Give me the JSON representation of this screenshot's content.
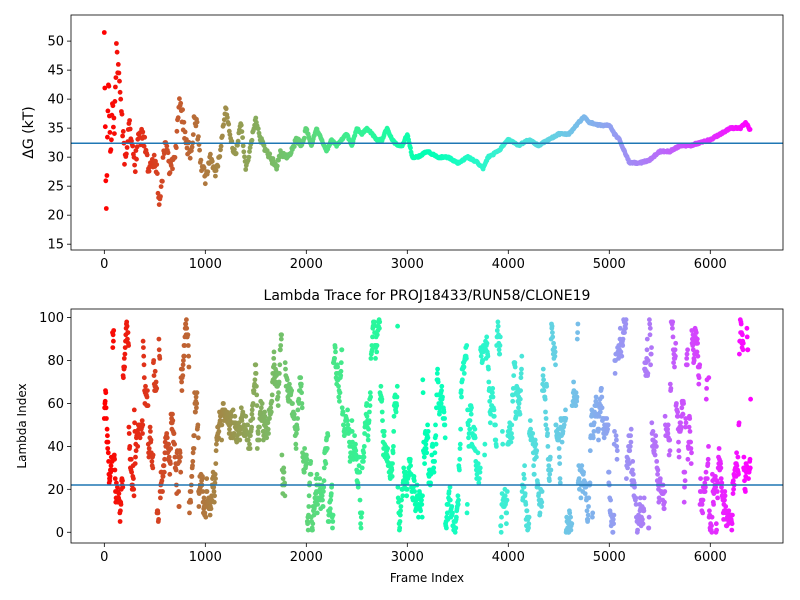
{
  "chart_data": [
    {
      "type": "scatter",
      "title": "",
      "xlabel": "",
      "ylabel": "ΔG (kT)",
      "xlim": [
        -330,
        6720
      ],
      "ylim": [
        14,
        54.5
      ],
      "xticks": [
        0,
        1000,
        2000,
        3000,
        4000,
        5000,
        6000
      ],
      "yticks": [
        15,
        20,
        25,
        30,
        35,
        40,
        45,
        50
      ],
      "hline": 32.4,
      "hline_color": "#1f77b4",
      "colormap": "rainbow",
      "n_frames": 6400,
      "series": [
        {
          "description_points": "running free energy estimate vs frame",
          "x": [
            0,
            20,
            40,
            60,
            80,
            100,
            120,
            150,
            200,
            250,
            300,
            350,
            400,
            450,
            500,
            550,
            600,
            650,
            700,
            750,
            800,
            850,
            900,
            950,
            1000,
            1050,
            1100,
            1150,
            1200,
            1250,
            1300,
            1350,
            1400,
            1450,
            1500,
            1550,
            1600,
            1650,
            1700,
            1750,
            1800,
            1850,
            1900,
            1950,
            2000,
            2050,
            2100,
            2150,
            2200,
            2250,
            2300,
            2350,
            2400,
            2450,
            2500,
            2550,
            2600,
            2650,
            2700,
            2750,
            2800,
            2850,
            2900,
            2950,
            3000,
            3050,
            3100,
            3200,
            3300,
            3400,
            3500,
            3600,
            3700,
            3750,
            3800,
            3900,
            4000,
            4100,
            4200,
            4300,
            4400,
            4500,
            4600,
            4700,
            4750,
            4800,
            4900,
            5000,
            5050,
            5100,
            5200,
            5300,
            5400,
            5500,
            5600,
            5700,
            5800,
            5900,
            6000,
            6100,
            6200,
            6300,
            6350,
            6400
          ],
          "y": [
            50,
            20,
            44,
            30,
            38,
            35,
            48,
            42,
            30,
            36,
            28,
            34,
            33,
            27,
            30,
            22,
            33,
            28,
            30,
            40,
            33,
            31,
            37,
            30,
            26,
            30,
            27,
            31,
            39,
            33,
            30,
            36,
            28,
            32,
            37,
            33,
            31,
            30,
            28,
            31,
            30,
            31,
            33,
            32,
            35,
            32,
            35,
            33,
            31,
            33,
            32,
            33,
            34,
            32,
            35,
            34,
            35,
            34,
            33,
            33,
            35,
            33,
            32,
            32,
            34,
            30,
            30,
            31,
            30,
            30,
            29,
            30,
            29,
            28,
            30,
            31,
            33,
            32,
            33,
            32,
            33,
            34,
            34,
            36,
            37,
            36,
            35.5,
            35.5,
            34,
            33,
            29,
            29,
            29.5,
            31,
            31,
            32,
            32,
            32.5,
            33,
            34,
            35,
            35,
            36,
            34.5
          ]
        }
      ]
    },
    {
      "type": "scatter",
      "title": "Lambda Trace for PROJ18433/RUN58/CLONE19",
      "xlabel": "Frame Index",
      "ylabel": "Lambda Index",
      "xlim": [
        -330,
        6720
      ],
      "ylim": [
        -5,
        104
      ],
      "xticks": [
        0,
        1000,
        2000,
        3000,
        4000,
        5000,
        6000
      ],
      "yticks": [
        0,
        20,
        40,
        60,
        80,
        100
      ],
      "hline": 22,
      "hline_color": "#1f77b4",
      "colormap": "rainbow",
      "n_frames": 6400,
      "lambda_range": [
        0,
        99
      ]
    }
  ]
}
